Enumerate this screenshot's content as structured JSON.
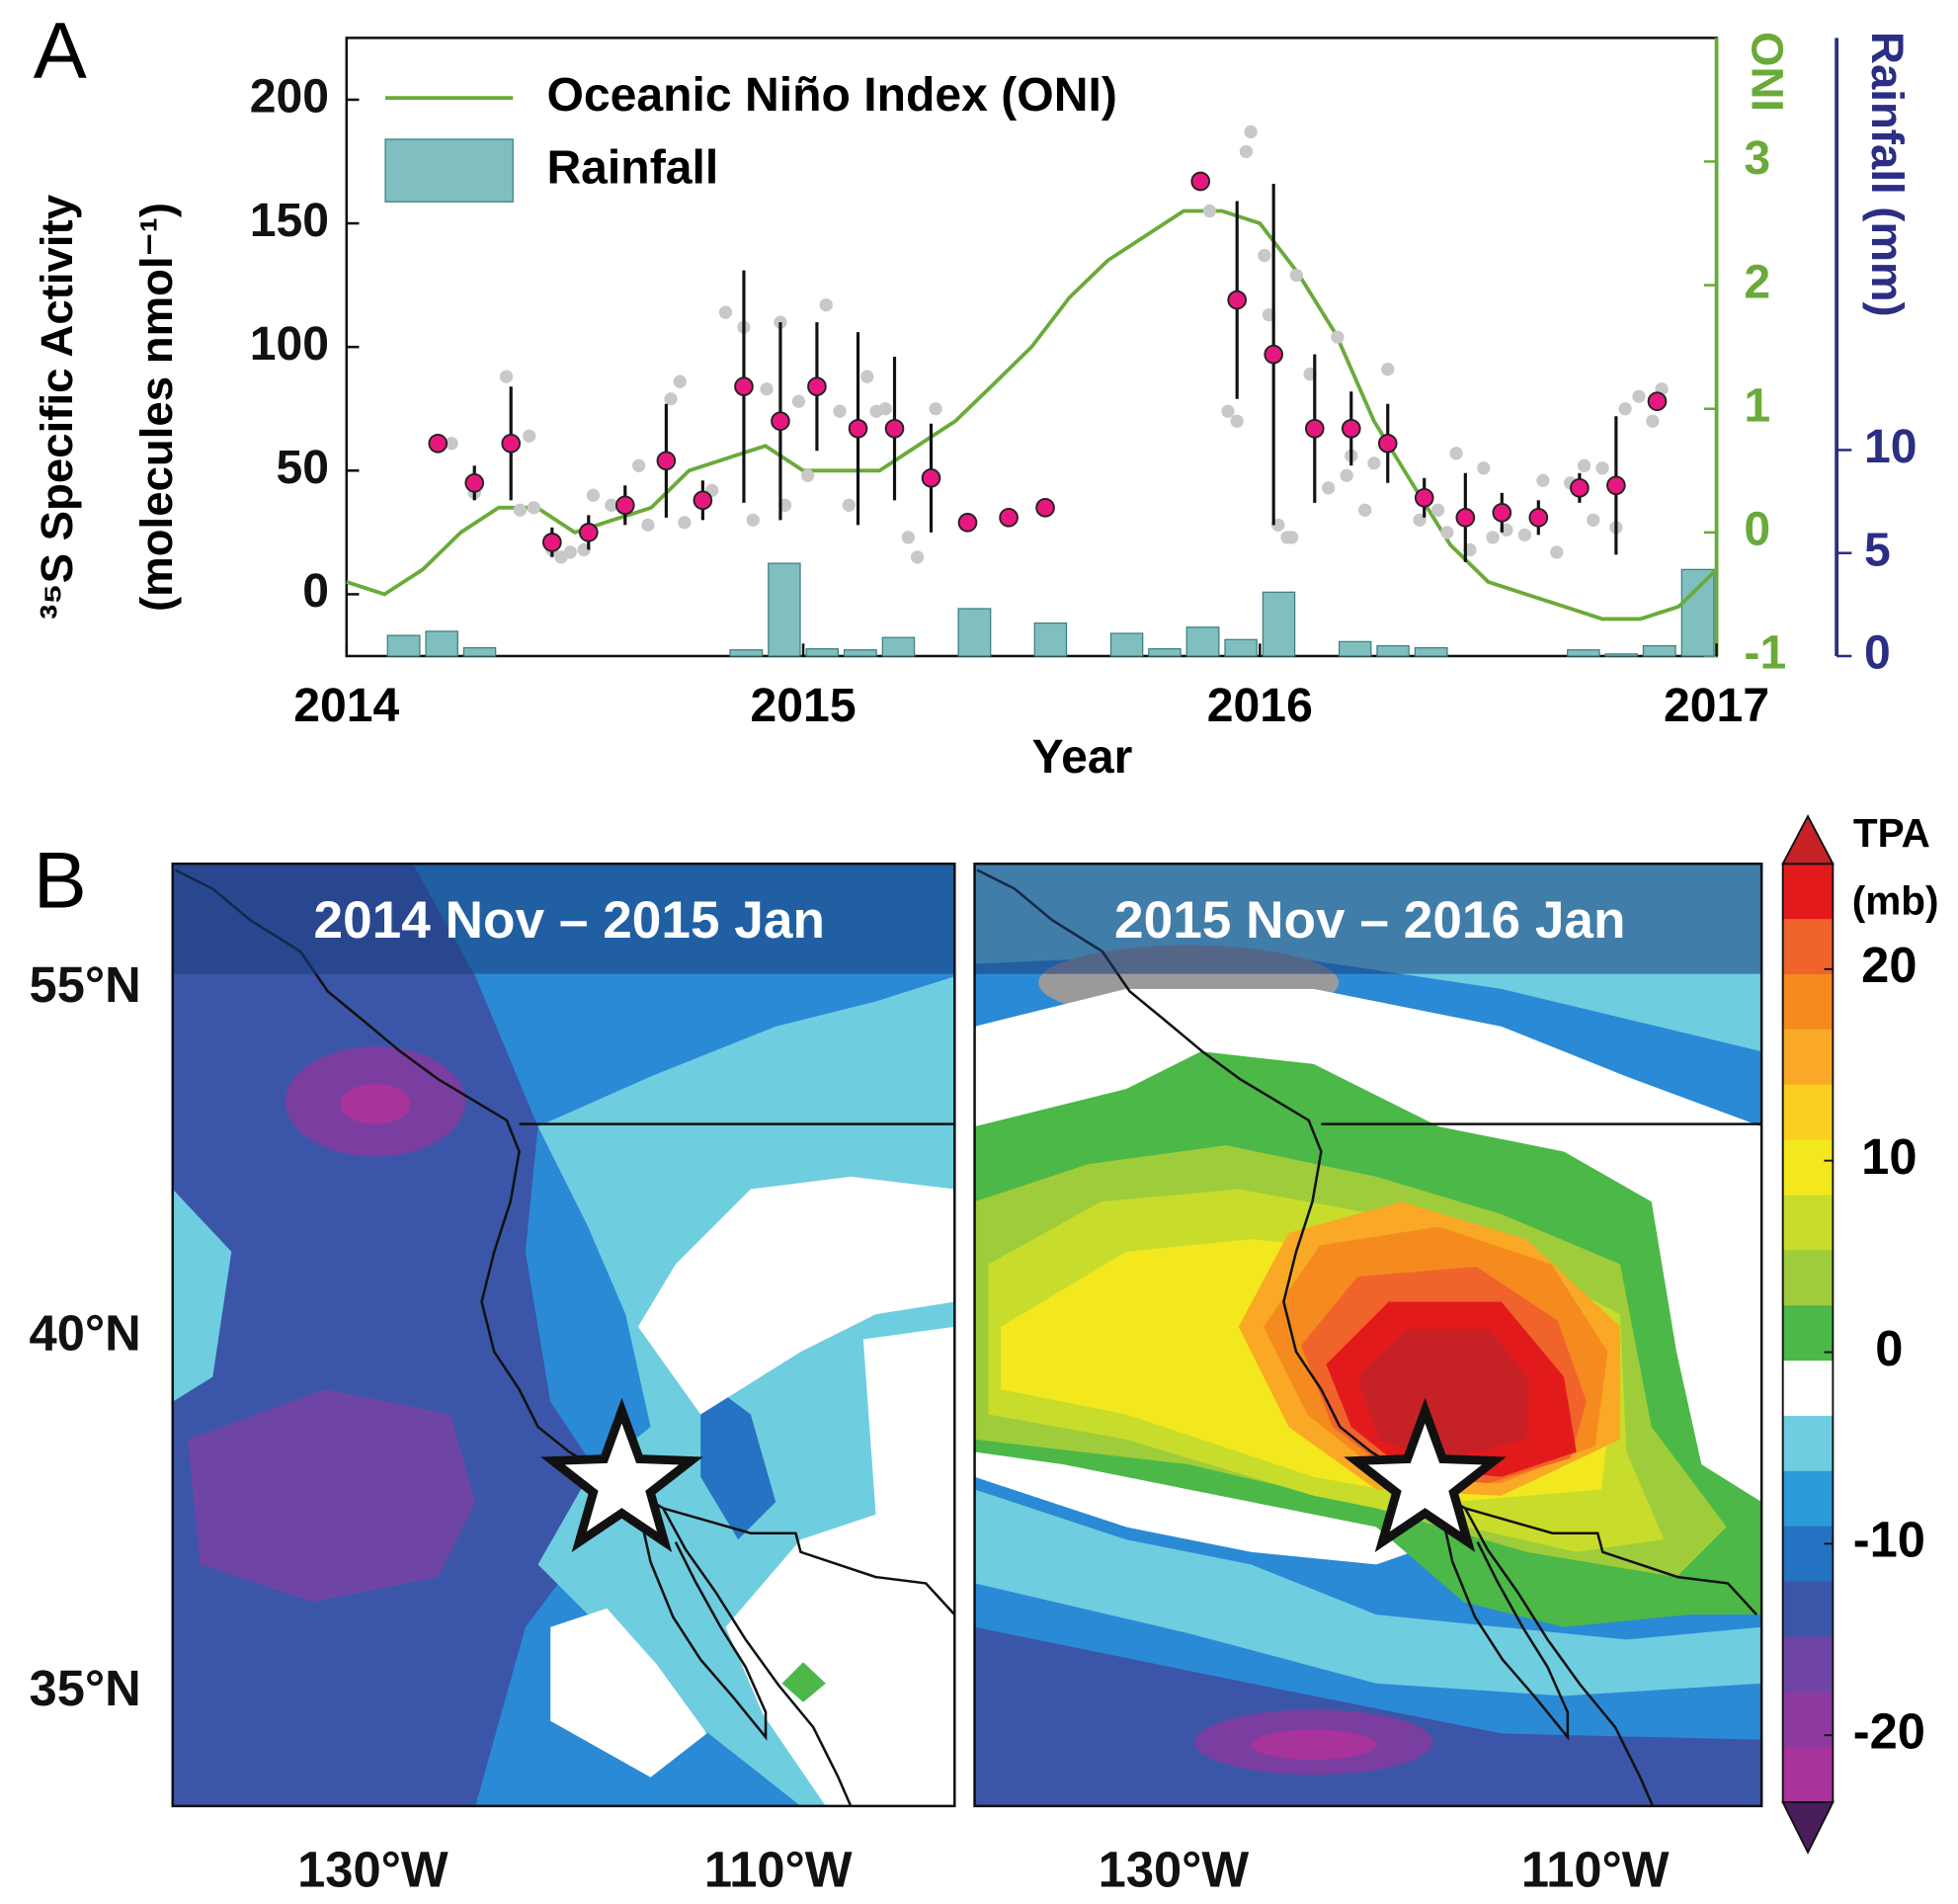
{
  "chart_data": {
    "type": "combo",
    "panel_labels": [
      "A",
      "B"
    ],
    "xlabel": "Year",
    "ylabel": [
      "³⁵S Specific Activity",
      "(molecules nmol⁻¹)"
    ],
    "y2label": "ONI",
    "y3label": "Rainfall (mm)",
    "xlim": [
      2014,
      2017
    ],
    "xticks": [
      2014,
      2015,
      2016,
      2017
    ],
    "ylim": [
      -25,
      225
    ],
    "yticks": [
      0,
      50,
      100,
      150,
      200
    ],
    "y2lim": [
      -1,
      4
    ],
    "y2ticks": [
      -1,
      0,
      1,
      2,
      3
    ],
    "y3lim": [
      0,
      30
    ],
    "y3ticks": [
      0,
      5,
      10
    ],
    "legend": "upper left",
    "axis_colors": {
      "y": "#111111",
      "y2": "#6aaa3a",
      "y3": "#2b2e83"
    },
    "series": [
      {
        "type": "bar",
        "name": "Rainfall",
        "axis": "y3",
        "color": "#7fbfbf",
        "edge": "#3f7f80",
        "x": [
          2014,
          2014.083,
          2014.167,
          2014.25,
          2014.333,
          2014.417,
          2014.5,
          2014.583,
          2014.667,
          2014.75,
          2014.833,
          2014.917,
          2015,
          2015.083,
          2015.167,
          2015.25,
          2015.333,
          2015.417,
          2015.5,
          2015.583,
          2015.667,
          2015.75,
          2015.833,
          2015.917,
          2016,
          2016.083,
          2016.167,
          2016.25,
          2016.333,
          2016.417,
          2016.5,
          2016.583,
          2016.667,
          2016.75,
          2016.833,
          2016.917
        ],
        "values": [
          0,
          1.0,
          1.2,
          0.4,
          0,
          0,
          0,
          0,
          0,
          0,
          0.3,
          4.5,
          0.35,
          0.3,
          0.9,
          0,
          2.3,
          0,
          1.6,
          0,
          1.1,
          0.35,
          1.4,
          0.8,
          3.1,
          0,
          0.7,
          0.5,
          0.4,
          0,
          0,
          0,
          0.3,
          0.1,
          0.5,
          4.2
        ]
      },
      {
        "type": "line",
        "name": "Oceanic Niño Index (ONI)",
        "axis": "y2",
        "color": "#6aaa3a",
        "x": [
          2014,
          2014.083,
          2014.167,
          2014.25,
          2014.333,
          2014.417,
          2014.5,
          2014.583,
          2014.667,
          2014.75,
          2014.833,
          2014.917,
          2015,
          2015.083,
          2015.167,
          2015.25,
          2015.333,
          2015.417,
          2015.5,
          2015.583,
          2015.667,
          2015.75,
          2015.833,
          2015.917,
          2016,
          2016.083,
          2016.167,
          2016.25,
          2016.333,
          2016.417,
          2016.5,
          2016.583,
          2016.667,
          2016.75,
          2016.833,
          2016.917,
          2017
        ],
        "values": [
          -0.4,
          -0.5,
          -0.3,
          0.0,
          0.2,
          0.2,
          0.0,
          0.1,
          0.2,
          0.5,
          0.6,
          0.7,
          0.5,
          0.5,
          0.5,
          0.7,
          0.9,
          1.2,
          1.5,
          1.9,
          2.2,
          2.4,
          2.6,
          2.6,
          2.5,
          2.1,
          1.6,
          0.9,
          0.4,
          -0.1,
          -0.4,
          -0.5,
          -0.6,
          -0.7,
          -0.7,
          -0.6,
          -0.3
        ]
      },
      {
        "type": "scatter",
        "axis": "y",
        "color": "#c8c8c8",
        "edge": "#c8c8c8",
        "size": 9,
        "x": [
          2014.23,
          2014.28,
          2014.35,
          2014.38,
          2014.4,
          2014.41,
          2014.45,
          2014.47,
          2014.49,
          2014.52,
          2014.54,
          2014.58,
          2014.64,
          2014.66,
          2014.71,
          2014.73,
          2014.74,
          2014.8,
          2014.83,
          2014.87,
          2014.89,
          2014.92,
          2014.95,
          2014.96,
          2014.99,
          2015.01,
          2015.05,
          2015.08,
          2015.1,
          2015.14,
          2015.16,
          2015.18,
          2015.23,
          2015.25,
          2015.29,
          2015.89,
          2015.93,
          2015.95,
          2015.97,
          2015.98,
          2016.01,
          2016.02,
          2016.04,
          2016.06,
          2016.07,
          2016.08,
          2016.11,
          2016.15,
          2016.17,
          2016.19,
          2016.2,
          2016.23,
          2016.25,
          2016.28,
          2016.35,
          2016.39,
          2016.41,
          2016.43,
          2016.46,
          2016.49,
          2016.51,
          2016.54,
          2016.58,
          2016.62,
          2016.65,
          2016.68,
          2016.71,
          2016.73,
          2016.75,
          2016.78,
          2016.8,
          2016.83,
          2016.86,
          2016.88
        ],
        "values": [
          61,
          41,
          88,
          34,
          64,
          35,
          18,
          15,
          17,
          18,
          40,
          36,
          52,
          28,
          79,
          86,
          29,
          42,
          114,
          108,
          30,
          83,
          110,
          36,
          78,
          48,
          117,
          74,
          36,
          88,
          74,
          75,
          23,
          15,
          75,
          155,
          74,
          70,
          179,
          187,
          137,
          113,
          28,
          23,
          23,
          129,
          89,
          43,
          104,
          48,
          56,
          34,
          53,
          91,
          30,
          34,
          25,
          57,
          18,
          51,
          23,
          26,
          24,
          46,
          17,
          45,
          52,
          30,
          51,
          27,
          75,
          80,
          70,
          83
        ]
      },
      {
        "type": "scatter",
        "axis": "y",
        "color": "#e8177f",
        "edge": "#222222",
        "size": 14,
        "x": [
          2014.2,
          2014.28,
          2014.36,
          2014.45,
          2014.53,
          2014.61,
          2014.7,
          2014.78,
          2014.87,
          2014.95,
          2015.03,
          2015.12,
          2015.2,
          2015.28,
          2015.36,
          2015.45,
          2015.53,
          2015.87,
          2015.95,
          2016.03,
          2016.12,
          2016.2,
          2016.28,
          2016.36,
          2016.45,
          2016.53,
          2016.61,
          2016.7,
          2016.78,
          2016.87
        ],
        "values": [
          61,
          45,
          61,
          21,
          25,
          36,
          54,
          38,
          84,
          70,
          84,
          67,
          67,
          47,
          29,
          31,
          35,
          167,
          119,
          97,
          67,
          67,
          61,
          39,
          31,
          33,
          31,
          43,
          44,
          78
        ],
        "errors": [
          0,
          7,
          23,
          6,
          7,
          8,
          23,
          8,
          47,
          40,
          26,
          39,
          29,
          22,
          0,
          0,
          0,
          0,
          40,
          69,
          30,
          15,
          16,
          8,
          18,
          8,
          7,
          6,
          28,
          0
        ]
      }
    ]
  },
  "maps": [
    {
      "title": "2014 Nov – 2015 Jan"
    },
    {
      "title": "2015 Nov – 2016 Jan"
    }
  ],
  "lat_labels": [
    "55°N",
    "40°N",
    "35°N"
  ],
  "lon_labels": [
    "130°W",
    "110°W"
  ],
  "colorbar": {
    "label": [
      "TPA",
      "(mb)"
    ],
    "lim": [
      -23.5,
      25.5
    ],
    "ticks": [
      20,
      10,
      0,
      -10,
      -20
    ],
    "colors": [
      "#e31a1c",
      "#f0632a",
      "#f58a1f",
      "#f9a925",
      "#fbcf1f",
      "#f2e81d",
      "#c8dc2c",
      "#9fcc3b",
      "#4cb848",
      "#ffffff",
      "#6fcde0",
      "#2a9ad8",
      "#2573c2",
      "#3b56a8",
      "#6e45a5",
      "#8c3a9e",
      "#a8339a"
    ],
    "extend_colors": [
      "#c62127",
      "#4a1d5c"
    ]
  }
}
